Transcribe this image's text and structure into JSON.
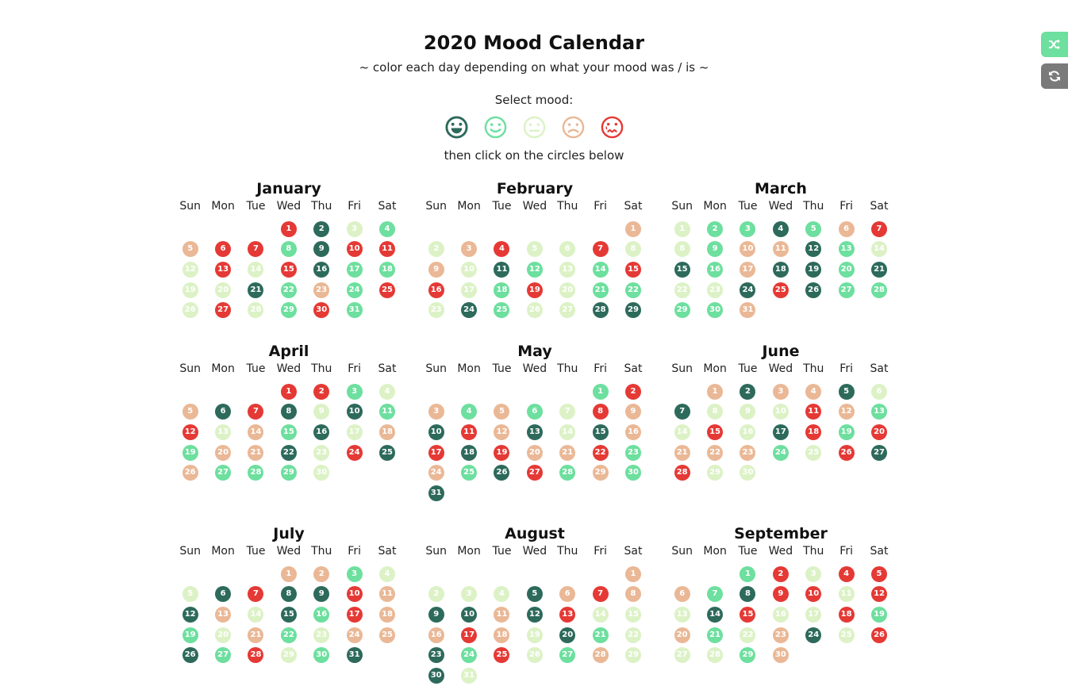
{
  "title": "2020 Mood Calendar",
  "subtitle": "~ color each day depending on what your mood was / is ~",
  "select_label": "Select mood:",
  "then_label": "then click on the circles below",
  "colors": {
    "1": "#2d6a5b",
    "2": "#6ddf9e",
    "3": "#dcf2c6",
    "4": "#eab896",
    "5": "#e53935",
    "0": "#dddddd"
  },
  "moods": [
    {
      "icon": "very-happy-face-icon",
      "color": "#2d6a5b"
    },
    {
      "icon": "happy-face-icon",
      "color": "#6ddf9e"
    },
    {
      "icon": "neutral-face-icon",
      "color": "#dcf2c6"
    },
    {
      "icon": "sad-face-icon",
      "color": "#eab896"
    },
    {
      "icon": "very-sad-face-icon",
      "color": "#e53935"
    }
  ],
  "side_buttons": [
    {
      "icon": "shuffle-icon",
      "color": "#6ddf9e"
    },
    {
      "icon": "refresh-icon",
      "color": "#7a7a7a"
    }
  ],
  "weekdays": [
    "Sun",
    "Mon",
    "Tue",
    "Wed",
    "Thu",
    "Fri",
    "Sat"
  ],
  "months": [
    {
      "name": "January",
      "start": 3,
      "moods": [
        5,
        1,
        3,
        2,
        4,
        5,
        5,
        2,
        1,
        5,
        5,
        3,
        5,
        3,
        5,
        1,
        2,
        2,
        3,
        3,
        1,
        2,
        4,
        2,
        5,
        3,
        5,
        3,
        2,
        5,
        2
      ]
    },
    {
      "name": "February",
      "start": 6,
      "moods": [
        4,
        3,
        4,
        5,
        3,
        3,
        5,
        3,
        4,
        3,
        1,
        2,
        3,
        2,
        5,
        5,
        3,
        2,
        5,
        3,
        2,
        2,
        3,
        1,
        2,
        3,
        3,
        1,
        1
      ]
    },
    {
      "name": "March",
      "start": 0,
      "moods": [
        3,
        2,
        2,
        1,
        2,
        4,
        5,
        3,
        2,
        4,
        4,
        1,
        2,
        3,
        1,
        2,
        4,
        1,
        1,
        2,
        1,
        3,
        3,
        1,
        5,
        1,
        2,
        2,
        2,
        2,
        4
      ]
    },
    {
      "name": "April",
      "start": 3,
      "moods": [
        5,
        5,
        2,
        3,
        4,
        1,
        5,
        1,
        3,
        1,
        2,
        5,
        3,
        4,
        2,
        1,
        3,
        4,
        2,
        4,
        4,
        1,
        3,
        5,
        1,
        4,
        2,
        2,
        2,
        3
      ]
    },
    {
      "name": "May",
      "start": 5,
      "moods": [
        2,
        5,
        4,
        2,
        4,
        2,
        3,
        5,
        4,
        1,
        5,
        4,
        1,
        3,
        1,
        4,
        5,
        1,
        5,
        4,
        4,
        5,
        2,
        4,
        2,
        1,
        5,
        2,
        4,
        2,
        1
      ]
    },
    {
      "name": "June",
      "start": 1,
      "moods": [
        4,
        1,
        4,
        4,
        1,
        3,
        1,
        3,
        3,
        3,
        5,
        4,
        2,
        3,
        5,
        3,
        1,
        5,
        2,
        5,
        4,
        4,
        4,
        2,
        3,
        5,
        1,
        5,
        3,
        3
      ]
    },
    {
      "name": "July",
      "start": 3,
      "moods": [
        4,
        4,
        2,
        3,
        3,
        1,
        5,
        1,
        1,
        5,
        4,
        1,
        4,
        3,
        1,
        2,
        5,
        4,
        2,
        3,
        4,
        2,
        3,
        4,
        4,
        1,
        2,
        5,
        3,
        2,
        1
      ]
    },
    {
      "name": "August",
      "start": 6,
      "moods": [
        4,
        3,
        3,
        3,
        1,
        4,
        5,
        4,
        1,
        1,
        4,
        1,
        5,
        3,
        3,
        4,
        5,
        4,
        3,
        1,
        2,
        3,
        1,
        2,
        5,
        3,
        2,
        4,
        3,
        1,
        3
      ]
    },
    {
      "name": "September",
      "start": 2,
      "moods": [
        2,
        5,
        3,
        5,
        5,
        4,
        2,
        1,
        5,
        5,
        3,
        5,
        3,
        1,
        5,
        3,
        3,
        5,
        2,
        4,
        2,
        3,
        4,
        1,
        3,
        5,
        3,
        3,
        2,
        4
      ]
    }
  ]
}
